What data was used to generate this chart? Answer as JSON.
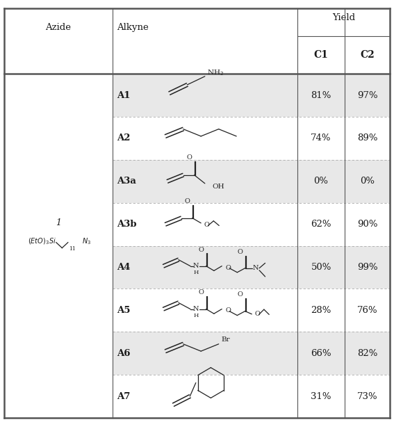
{
  "figsize": [
    5.67,
    6.07
  ],
  "dpi": 100,
  "bg_color": "#ffffff",
  "shaded_rows": [
    0,
    2,
    4,
    6
  ],
  "shade_color": "#e8e8e8",
  "row_labels": [
    "A1",
    "A2",
    "A3a",
    "A3b",
    "A4",
    "A5",
    "A6",
    "A7"
  ],
  "c1_yields": [
    "81%",
    "74%",
    "0%",
    "62%",
    "50%",
    "28%",
    "66%",
    "31%"
  ],
  "c2_yields": [
    "97%",
    "89%",
    "0%",
    "90%",
    "99%",
    "76%",
    "82%",
    "73%"
  ],
  "line_color": "#555555",
  "text_color": "#1a1a1a",
  "struct_color": "#222222",
  "dashed_line_color": "#aaaaaa",
  "header_fontsize": 9.5,
  "subheader_fontsize": 10,
  "cell_fontsize": 9.5
}
